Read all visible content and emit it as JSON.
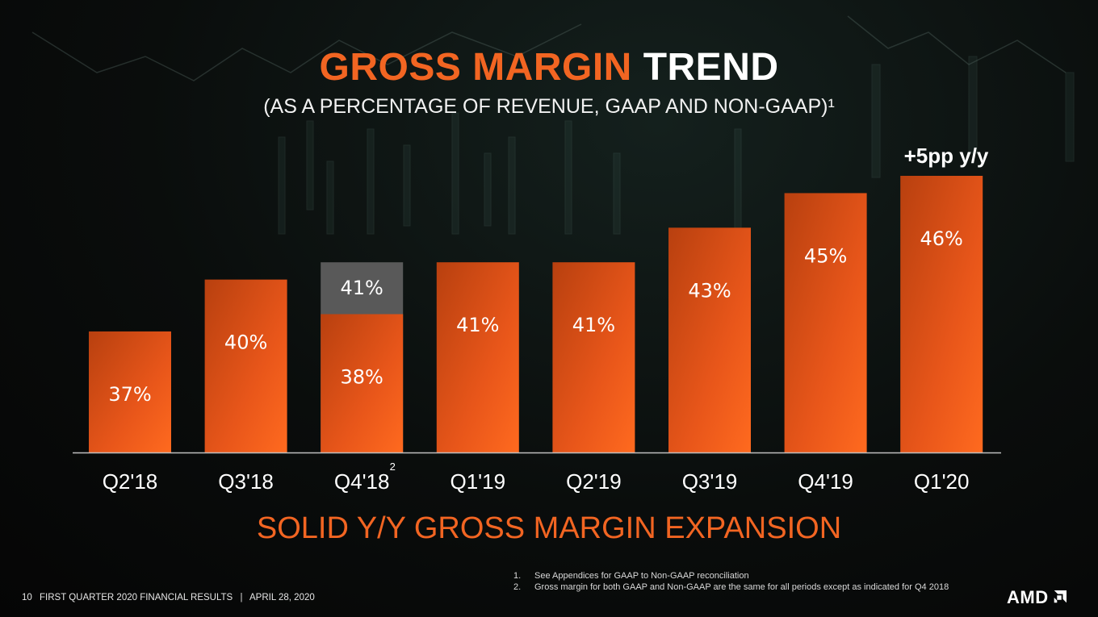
{
  "title": {
    "accent": "GROSS MARGIN",
    "plain": "TREND"
  },
  "subtitle": "(AS A PERCENTAGE OF REVENUE, GAAP AND NON-GAAP)¹",
  "callout": "+5pp y/y",
  "headline": "SOLID Y/Y GROSS MARGIN EXPANSION",
  "footnotes": [
    {
      "num": "1.",
      "text": "See Appendices for GAAP to Non-GAAP reconciliation"
    },
    {
      "num": "2.",
      "text": "Gross margin for both GAAP and Non-GAAP are the same for all periods except as indicated for Q4 2018"
    }
  ],
  "footer": {
    "page": "10",
    "text": "FIRST QUARTER 2020 FINANCIAL RESULTS",
    "sep": "|",
    "date": "APRIL 28, 2020"
  },
  "logo": "AMD",
  "colors": {
    "accent": "#f26522",
    "bar": "#f26522",
    "gray": "#595959"
  },
  "chart_data": {
    "type": "bar",
    "categories": [
      "Q2'18",
      "Q3'18",
      "Q4'18",
      "Q1'19",
      "Q2'19",
      "Q3'19",
      "Q4'19",
      "Q1'20"
    ],
    "category_footnotes": [
      "",
      "",
      "2",
      "",
      "",
      "",
      "",
      ""
    ],
    "series": [
      {
        "values": [
          37,
          40,
          38,
          41,
          41,
          43,
          45,
          46
        ],
        "labels": [
          "37%",
          "40%",
          "38%",
          "41%",
          "41%",
          "43%",
          "45%",
          "46%"
        ]
      },
      {
        "values": [
          null,
          null,
          41,
          null,
          null,
          null,
          null,
          null
        ],
        "labels": [
          "",
          "",
          "41%",
          "",
          "",
          "",
          "",
          ""
        ]
      }
    ],
    "title": "GROSS MARGIN TREND",
    "xlabel": "",
    "ylabel": "",
    "ylim": [
      30,
      47
    ],
    "grid": false,
    "legend": "none"
  }
}
